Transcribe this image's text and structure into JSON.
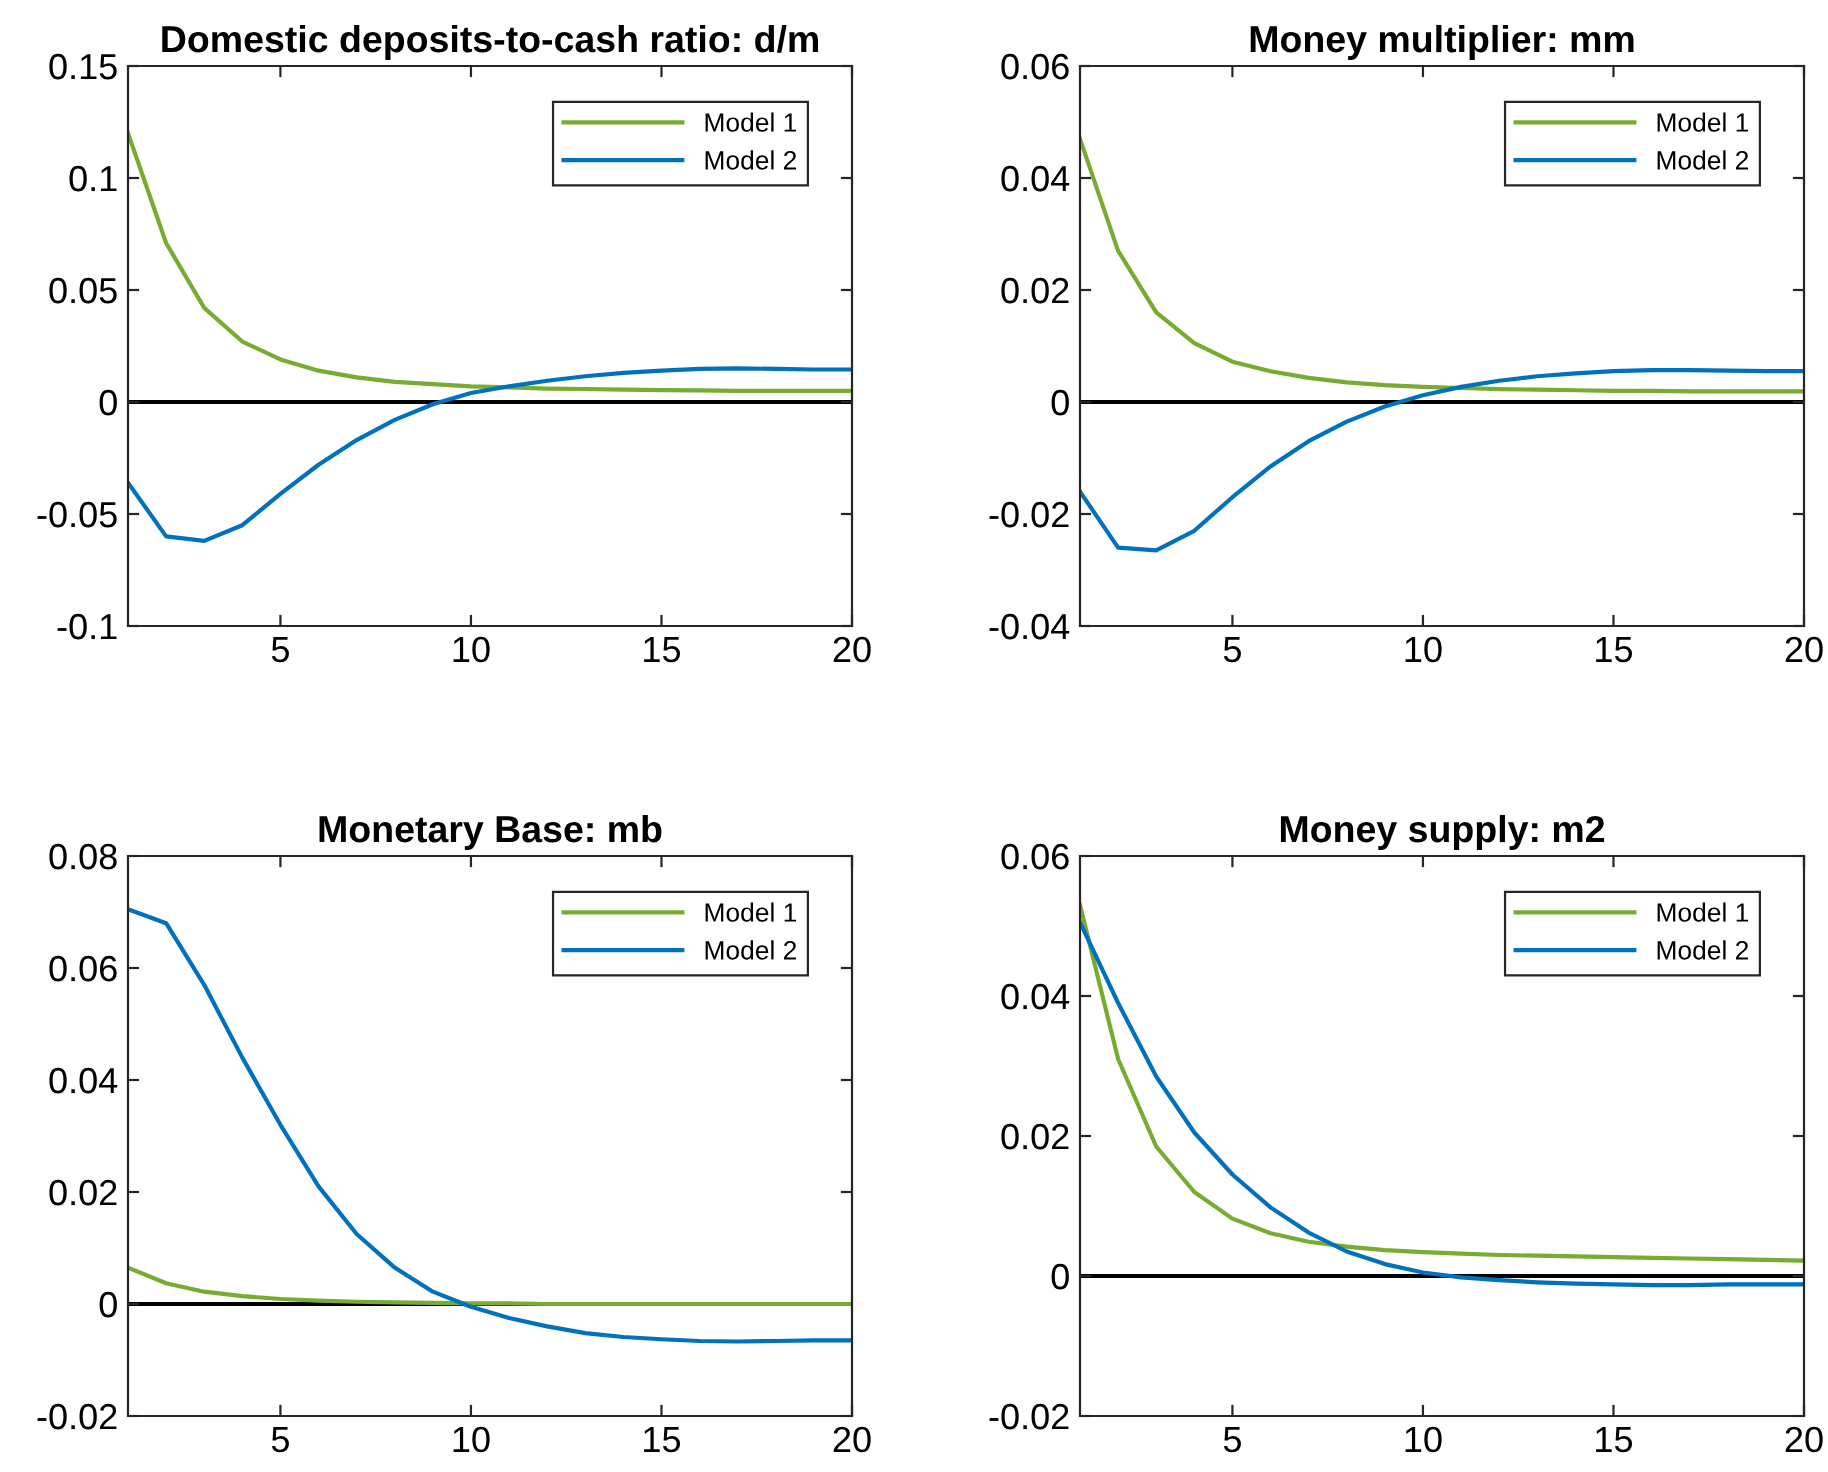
{
  "chart_data": [
    {
      "type": "line",
      "title": "Domestic deposits-to-cash ratio: d/m",
      "x": [
        1,
        2,
        3,
        4,
        5,
        6,
        7,
        8,
        9,
        10,
        11,
        12,
        13,
        14,
        15,
        16,
        17,
        18,
        19,
        20
      ],
      "xlim": [
        1,
        20
      ],
      "xticks": [
        5,
        10,
        15,
        20
      ],
      "ylim": [
        -0.1,
        0.15
      ],
      "yticks": [
        -0.1,
        -0.05,
        0,
        0.05,
        0.1,
        0.15
      ],
      "grid": false,
      "legend": "top right",
      "ref_lines": [
        {
          "axis": "y",
          "value": 0,
          "color": "#000000"
        }
      ],
      "series": [
        {
          "name": "Model 1",
          "color": "#77ac30",
          "values": [
            0.12,
            0.071,
            0.042,
            0.027,
            0.019,
            0.014,
            0.011,
            0.009,
            0.008,
            0.007,
            0.0065,
            0.006,
            0.0058,
            0.0055,
            0.0053,
            0.0052,
            0.005,
            0.005,
            0.005,
            0.005
          ]
        },
        {
          "name": "Model 2",
          "color": "#0072bd",
          "values": [
            -0.036,
            -0.06,
            -0.062,
            -0.055,
            -0.041,
            -0.028,
            -0.017,
            -0.008,
            -0.001,
            0.004,
            0.007,
            0.0095,
            0.0115,
            0.013,
            0.014,
            0.0148,
            0.015,
            0.0148,
            0.0145,
            0.0145
          ]
        }
      ]
    },
    {
      "type": "line",
      "title": "Money multiplier: mm",
      "x": [
        1,
        2,
        3,
        4,
        5,
        6,
        7,
        8,
        9,
        10,
        11,
        12,
        13,
        14,
        15,
        16,
        17,
        18,
        19,
        20
      ],
      "xlim": [
        1,
        20
      ],
      "xticks": [
        5,
        10,
        15,
        20
      ],
      "ylim": [
        -0.04,
        0.06
      ],
      "yticks": [
        -0.04,
        -0.02,
        0,
        0.02,
        0.04,
        0.06
      ],
      "grid": false,
      "legend": "top right",
      "ref_lines": [
        {
          "axis": "y",
          "value": 0,
          "color": "#000000"
        }
      ],
      "series": [
        {
          "name": "Model 1",
          "color": "#77ac30",
          "values": [
            0.047,
            0.027,
            0.016,
            0.0105,
            0.0072,
            0.0055,
            0.0043,
            0.0035,
            0.003,
            0.0027,
            0.0025,
            0.0023,
            0.0022,
            0.0021,
            0.002,
            0.002,
            0.0019,
            0.0019,
            0.0019,
            0.0019
          ]
        },
        {
          "name": "Model 2",
          "color": "#0072bd",
          "values": [
            -0.016,
            -0.026,
            -0.0265,
            -0.023,
            -0.017,
            -0.0115,
            -0.007,
            -0.0035,
            -0.0008,
            0.0012,
            0.0027,
            0.0038,
            0.0046,
            0.0051,
            0.0055,
            0.0057,
            0.0057,
            0.0056,
            0.0055,
            0.0055
          ]
        }
      ]
    },
    {
      "type": "line",
      "title": "Monetary Base: mb",
      "x": [
        1,
        2,
        3,
        4,
        5,
        6,
        7,
        8,
        9,
        10,
        11,
        12,
        13,
        14,
        15,
        16,
        17,
        18,
        19,
        20
      ],
      "xlim": [
        1,
        20
      ],
      "xticks": [
        5,
        10,
        15,
        20
      ],
      "ylim": [
        -0.02,
        0.08
      ],
      "yticks": [
        -0.02,
        0,
        0.02,
        0.04,
        0.06,
        0.08
      ],
      "grid": false,
      "legend": "top right",
      "ref_lines": [
        {
          "axis": "y",
          "value": 0,
          "color": "#000000"
        }
      ],
      "series": [
        {
          "name": "Model 1",
          "color": "#77ac30",
          "values": [
            0.0065,
            0.0037,
            0.0022,
            0.0014,
            0.0009,
            0.0006,
            0.0004,
            0.0003,
            0.0002,
            0.0001,
            0.0001,
            0,
            0,
            0,
            0,
            0,
            0,
            0,
            0,
            0
          ]
        },
        {
          "name": "Model 2",
          "color": "#0072bd",
          "values": [
            0.0705,
            0.068,
            0.057,
            0.044,
            0.032,
            0.021,
            0.0125,
            0.0065,
            0.0022,
            -0.0005,
            -0.0025,
            -0.004,
            -0.0052,
            -0.0059,
            -0.0063,
            -0.0066,
            -0.0067,
            -0.0066,
            -0.0065,
            -0.0065
          ]
        }
      ]
    },
    {
      "type": "line",
      "title": "Money supply: m2",
      "x": [
        1,
        2,
        3,
        4,
        5,
        6,
        7,
        8,
        9,
        10,
        11,
        12,
        13,
        14,
        15,
        16,
        17,
        18,
        19,
        20
      ],
      "xlim": [
        1,
        20
      ],
      "xticks": [
        5,
        10,
        15,
        20
      ],
      "ylim": [
        -0.02,
        0.06
      ],
      "yticks": [
        -0.02,
        0,
        0.02,
        0.04,
        0.06
      ],
      "grid": false,
      "legend": "top right",
      "ref_lines": [
        {
          "axis": "y",
          "value": 0,
          "color": "#000000"
        }
      ],
      "series": [
        {
          "name": "Model 1",
          "color": "#77ac30",
          "values": [
            0.053,
            0.031,
            0.0185,
            0.012,
            0.0082,
            0.0061,
            0.0049,
            0.0042,
            0.0037,
            0.0034,
            0.0032,
            0.003,
            0.0029,
            0.0028,
            0.0027,
            0.0026,
            0.0025,
            0.0024,
            0.0023,
            0.0022
          ]
        },
        {
          "name": "Model 2",
          "color": "#0072bd",
          "values": [
            0.0505,
            0.039,
            0.0285,
            0.0205,
            0.0145,
            0.0098,
            0.0062,
            0.0035,
            0.0017,
            0.0005,
            -0.0002,
            -0.0006,
            -0.0009,
            -0.0011,
            -0.0012,
            -0.0013,
            -0.0013,
            -0.0012,
            -0.0012,
            -0.0012
          ]
        }
      ]
    }
  ]
}
